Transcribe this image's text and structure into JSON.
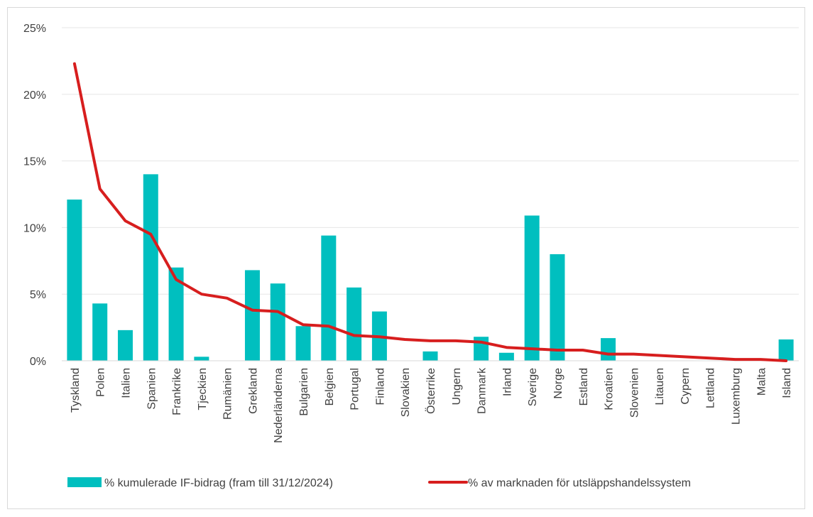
{
  "chart_data": {
    "type": "bar",
    "categories": [
      "Tyskland",
      "Polen",
      "Italien",
      "Spanien",
      "Frankrike",
      "Tjeckien",
      "Rumänien",
      "Grekland",
      "Nederländerna",
      "Bulgarien",
      "Belgien",
      "Portugal",
      "Finland",
      "Slovakien",
      "Österrike",
      "Ungern",
      "Danmark",
      "Irland",
      "Sverige",
      "Norge",
      "Estland",
      "Kroatien",
      "Slovenien",
      "Litauen",
      "Cypern",
      "Lettland",
      "Luxemburg",
      "Malta",
      "Island"
    ],
    "y_unit": "%",
    "ylim": [
      0,
      25
    ],
    "yticks": [
      0,
      5,
      10,
      15,
      20,
      25
    ],
    "ytick_labels": [
      "0%",
      "5%",
      "10%",
      "15%",
      "20%",
      "25%"
    ],
    "grid": true,
    "legend_position": "bottom",
    "series": [
      {
        "name": "% kumulerade IF-bidrag (fram till 31/12/2024)",
        "type": "bar",
        "color": "#00BFBF",
        "values": [
          12.1,
          4.3,
          2.3,
          14.0,
          7.0,
          0.3,
          0.0,
          6.8,
          5.8,
          2.6,
          9.4,
          5.5,
          3.7,
          0.0,
          0.7,
          0.0,
          1.8,
          0.6,
          10.9,
          8.0,
          0.0,
          1.7,
          0.0,
          0.0,
          0.0,
          0.0,
          0.0,
          0.0,
          1.6
        ]
      },
      {
        "name": "% av marknaden för utsläppshandelssystem",
        "type": "line",
        "color": "#D71E1E",
        "values": [
          22.3,
          12.9,
          10.5,
          9.5,
          6.1,
          5.0,
          4.7,
          3.8,
          3.7,
          2.7,
          2.6,
          1.9,
          1.8,
          1.6,
          1.5,
          1.5,
          1.4,
          1.0,
          0.9,
          0.8,
          0.8,
          0.5,
          0.5,
          0.4,
          0.3,
          0.2,
          0.1,
          0.1,
          0.0
        ]
      }
    ]
  }
}
